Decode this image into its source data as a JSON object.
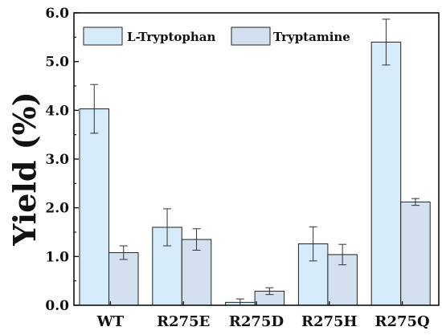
{
  "chart_data": {
    "type": "bar",
    "title": "",
    "xlabel": "",
    "ylabel": "Yield (%)",
    "ylim": [
      0,
      6.0
    ],
    "yticks": [
      "0.0",
      "1.0",
      "2.0",
      "3.0",
      "4.0",
      "5.0",
      "6.0"
    ],
    "categories": [
      "WT",
      "R275E",
      "R275D",
      "R275H",
      "R275Q"
    ],
    "series": [
      {
        "name": "L-Tryptophan",
        "color": "#d6ebfa",
        "values": [
          4.03,
          1.6,
          0.06,
          1.26,
          5.4
        ],
        "errors": [
          0.5,
          0.38,
          0.07,
          0.35,
          0.47
        ]
      },
      {
        "name": "Tryptamine",
        "color": "#d3e0f0",
        "values": [
          1.08,
          1.35,
          0.29,
          1.04,
          2.12
        ],
        "errors": [
          0.14,
          0.22,
          0.07,
          0.21,
          0.07
        ]
      }
    ],
    "legend_position": "top",
    "grid": false
  }
}
